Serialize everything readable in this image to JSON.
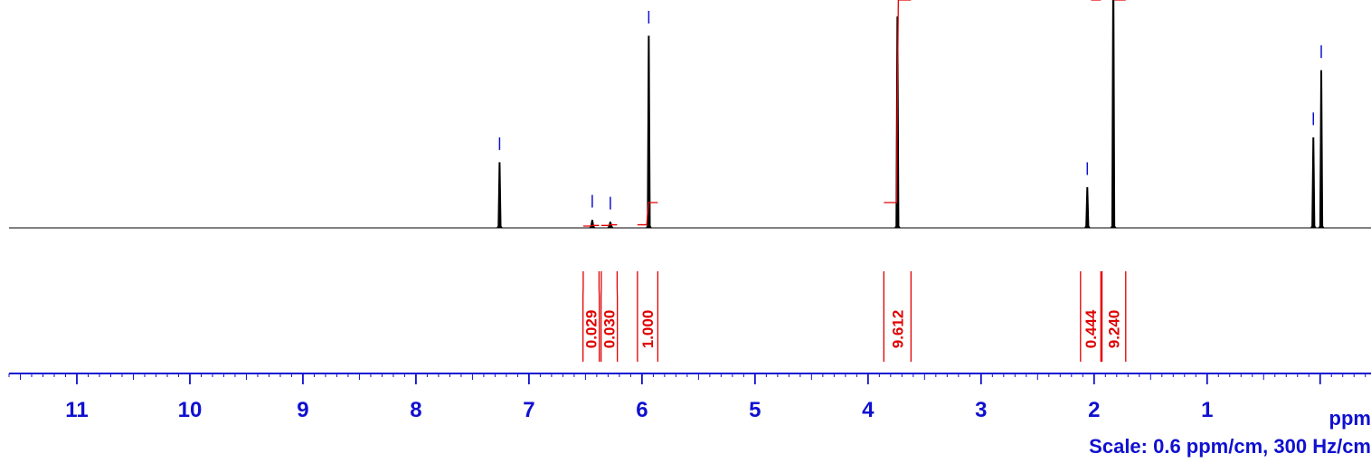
{
  "chart_data": {
    "type": "line",
    "xlabel": "ppm",
    "x_reversed": true,
    "xlim": [
      11.6,
      -0.45
    ],
    "x_ticks": [
      11,
      10,
      9,
      8,
      7,
      6,
      5,
      4,
      3,
      2,
      1
    ],
    "tick_labels": [
      "11",
      "10",
      "9",
      "8",
      "7",
      "6",
      "5",
      "4",
      "3",
      "2",
      "1"
    ],
    "scale_text": "Scale: 0.6 ppm/cm, 300 Hz/cm",
    "colors": {
      "spectrum": "#000000",
      "integral": "#e00000",
      "axis": "#1010d0",
      "peak_marker": "#1010d0"
    },
    "peaks": [
      {
        "ppm": 7.26,
        "height": 0.34
      },
      {
        "ppm": 6.44,
        "height": 0.04
      },
      {
        "ppm": 6.28,
        "height": 0.03
      },
      {
        "ppm": 5.94,
        "height": 1.0
      },
      {
        "ppm": 3.74,
        "height": 1.1
      },
      {
        "ppm": 2.06,
        "height": 0.21
      },
      {
        "ppm": 1.83,
        "height": 1.4
      },
      {
        "ppm": 0.06,
        "height": 0.47
      },
      {
        "ppm": -0.01,
        "height": 0.82
      }
    ],
    "integrals": [
      {
        "from": 6.52,
        "to": 6.38,
        "value": "0.029"
      },
      {
        "from": 6.36,
        "to": 6.22,
        "value": "0.030"
      },
      {
        "from": 6.04,
        "to": 5.86,
        "value": "1.000"
      },
      {
        "from": 3.86,
        "to": 3.62,
        "value": "9.612"
      },
      {
        "from": 2.12,
        "to": 1.94,
        "value": "0.444"
      },
      {
        "from": 1.93,
        "to": 1.72,
        "value": "9.240"
      }
    ]
  }
}
